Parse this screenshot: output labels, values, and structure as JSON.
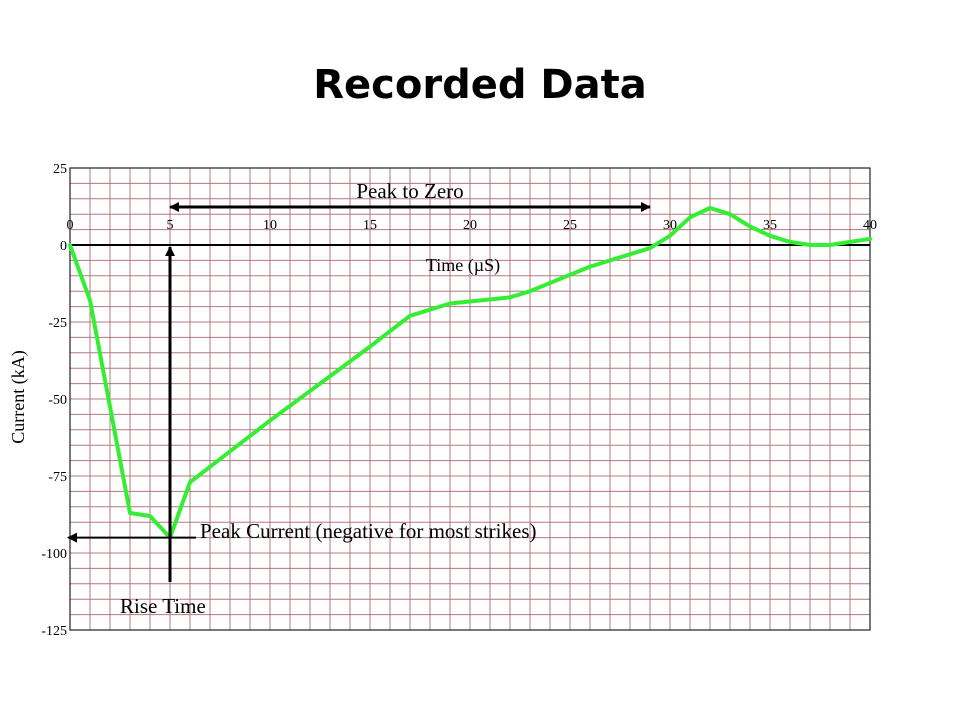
{
  "slide": {
    "title": "Recorded Data"
  },
  "chart_data": {
    "type": "line",
    "title": "",
    "xlabel": "Time (µS)",
    "ylabel": "Current (kA)",
    "xlim": [
      0,
      40
    ],
    "ylim": [
      -125,
      25
    ],
    "x_ticks": [
      0,
      5,
      10,
      15,
      20,
      25,
      30,
      35,
      40
    ],
    "y_ticks": [
      25,
      0,
      -25,
      -50,
      -75,
      -100,
      -125
    ],
    "grid": true,
    "grid_color": "#b0787c",
    "series": [
      {
        "color": "#33ee33",
        "x": [
          0,
          1,
          3,
          4,
          5,
          6,
          10,
          15,
          17,
          19,
          22,
          23,
          26,
          29,
          30,
          31,
          32,
          33,
          34,
          35,
          36,
          37,
          38,
          40
        ],
        "y": [
          0,
          -18,
          -87,
          -88,
          -95,
          -77,
          -57,
          -33,
          -23,
          -19,
          -17,
          -15,
          -7,
          -1,
          3,
          9,
          12,
          10,
          6,
          3,
          1,
          0,
          0,
          2
        ]
      }
    ],
    "annotations": {
      "peak_to_zero": {
        "label": "Peak to Zero",
        "x_start": 5,
        "x_end": 29
      },
      "peak_current": {
        "label": "Peak Current (negative for most strikes)",
        "y": -95
      },
      "rise_time": {
        "label": "Rise Time",
        "x": 5
      }
    }
  }
}
